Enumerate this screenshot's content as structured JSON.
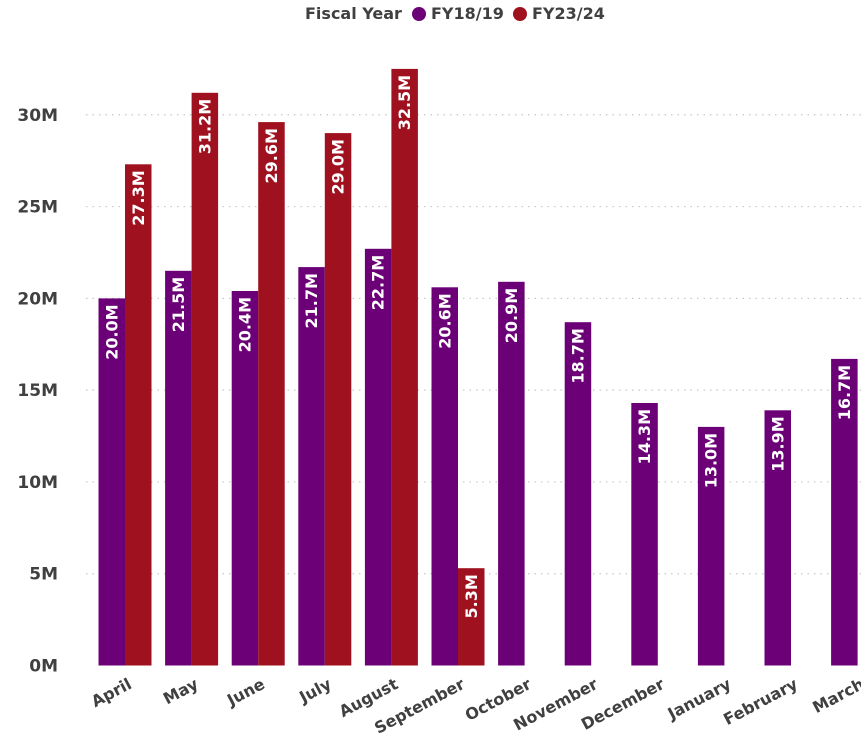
{
  "chart_data": {
    "type": "bar",
    "legend": {
      "title": "Fiscal Year",
      "placement": "top-center"
    },
    "categories": [
      "April",
      "May",
      "June",
      "July",
      "August",
      "September",
      "October",
      "November",
      "December",
      "January",
      "February",
      "March"
    ],
    "series": [
      {
        "name": "FY18/19",
        "color": "#6b0077",
        "values": [
          20.0,
          21.5,
          20.4,
          21.7,
          22.7,
          20.6,
          20.9,
          18.7,
          14.3,
          13.0,
          13.9,
          16.7
        ],
        "labels": [
          "20.0M",
          "21.5M",
          "20.4M",
          "21.7M",
          "22.7M",
          "20.6M",
          "20.9M",
          "18.7M",
          "14.3M",
          "13.0M",
          "13.9M",
          "16.7M"
        ]
      },
      {
        "name": "FY23/24",
        "color": "#a0111f",
        "values": [
          27.3,
          31.2,
          29.6,
          29.0,
          32.5,
          5.3,
          null,
          null,
          null,
          null,
          null,
          null
        ],
        "labels": [
          "27.3M",
          "31.2M",
          "29.6M",
          "29.0M",
          "32.5M",
          "5.3M",
          null,
          null,
          null,
          null,
          null,
          null
        ]
      }
    ],
    "y_unit": "M",
    "y_ticks": [
      0,
      5,
      10,
      15,
      20,
      25,
      30
    ],
    "y_tick_labels": [
      "0M",
      "5M",
      "10M",
      "15M",
      "20M",
      "25M",
      "30M"
    ],
    "ylim": [
      0,
      35
    ],
    "grid": true,
    "xlabel": "",
    "ylabel": ""
  }
}
